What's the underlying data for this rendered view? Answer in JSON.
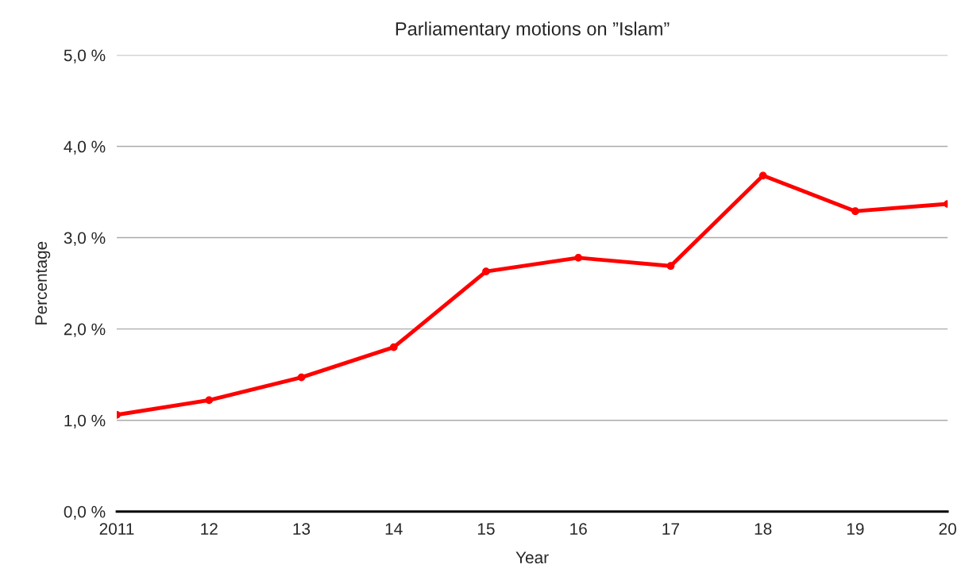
{
  "chart_data": {
    "type": "line",
    "title": "Parliamentary motions on ”Islam”",
    "xlabel": "Year",
    "ylabel": "Percentage",
    "categories": [
      "2011",
      "12",
      "13",
      "14",
      "15",
      "16",
      "17",
      "18",
      "19",
      "20"
    ],
    "series": [
      {
        "color": "#ff0000",
        "values": [
          1.06,
          1.22,
          1.47,
          1.8,
          2.63,
          2.78,
          2.69,
          3.68,
          3.29,
          3.37
        ]
      }
    ],
    "ylim": [
      0,
      5
    ],
    "yticks": [
      {
        "value": 0,
        "label": "0,0 %"
      },
      {
        "value": 1,
        "label": "1,0 %"
      },
      {
        "value": 2,
        "label": "2,0 %"
      },
      {
        "value": 3,
        "label": "3,0 %"
      },
      {
        "value": 4,
        "label": "4,0 %"
      },
      {
        "value": 5,
        "label": "5,0 %"
      }
    ],
    "grid": "y",
    "marker": "circle",
    "line_style": "solid",
    "legend": false
  }
}
